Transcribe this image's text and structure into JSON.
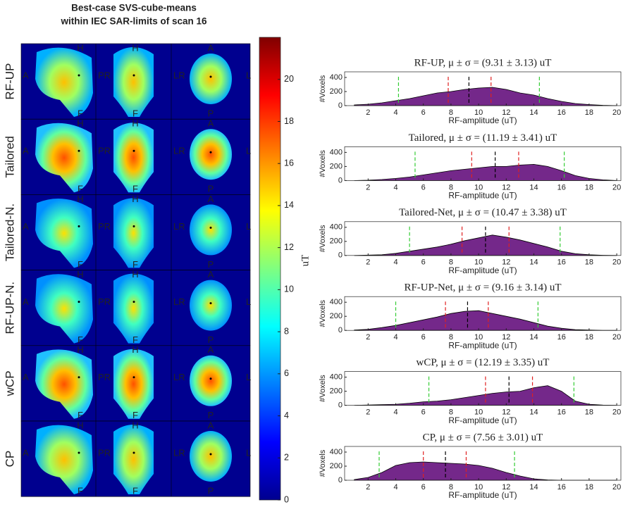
{
  "chart_data": [
    {
      "type": "image-grid",
      "title": [
        "Best-case SVS-cube-means",
        "within IEC SAR-limits of scan 16"
      ],
      "rows": [
        "RF-UP",
        "Tailored",
        "Tailored-N.",
        "RF-UP-N.",
        "wCP",
        "CP"
      ],
      "orientation_labels": {
        "sag_left": "A",
        "sag_top": "H",
        "sag_bottom": "F",
        "cor_left": "PR",
        "cor_top": "H",
        "cor_bottom": "F",
        "tra_left": "LR",
        "tra_top": "A",
        "tra_bottom": "P",
        "tra_right": "L"
      }
    },
    {
      "type": "colorbar",
      "ylim": [
        0,
        22
      ],
      "yticks": [
        0,
        2,
        4,
        6,
        8,
        10,
        12,
        14,
        16,
        18,
        20
      ],
      "label": "uT"
    },
    {
      "type": "area",
      "title": "RF-UP, μ ± σ = (9.31 ± 3.13) uT",
      "xlabel": "RF-amplitude (uT)",
      "ylabel": "#Voxels",
      "color": "#74288a",
      "x": [
        1,
        2,
        3,
        4,
        5,
        6,
        7,
        8,
        9,
        10,
        11,
        12,
        13,
        14,
        15,
        16,
        17,
        18,
        19,
        20
      ],
      "values": [
        10,
        20,
        40,
        70,
        100,
        140,
        180,
        200,
        230,
        250,
        260,
        230,
        180,
        150,
        100,
        60,
        30,
        15,
        5,
        0
      ],
      "xlim": [
        0.3,
        20.3
      ],
      "xticks": [
        2,
        4,
        6,
        8,
        10,
        12,
        14,
        16,
        18,
        20
      ],
      "ylim": [
        0,
        480
      ],
      "yticks": [
        0,
        200,
        400
      ],
      "markers": [
        {
          "value": 4.2,
          "color": "#33cc33"
        },
        {
          "value": 14.4,
          "color": "#33cc33"
        },
        {
          "value": 7.8,
          "color": "#e02020"
        },
        {
          "value": 10.9,
          "color": "#e02020"
        },
        {
          "value": 9.3,
          "color": "#000000"
        }
      ]
    },
    {
      "type": "area",
      "title": "Tailored, μ ± σ = (11.19 ± 3.41) uT",
      "xlabel": "RF-amplitude (uT)",
      "ylabel": "#Voxels",
      "color": "#74288a",
      "x": [
        1,
        2,
        3,
        4,
        5,
        6,
        7,
        8,
        9,
        10,
        11,
        12,
        13,
        14,
        15,
        16,
        17,
        18,
        19,
        20
      ],
      "values": [
        0,
        5,
        15,
        30,
        50,
        80,
        110,
        140,
        160,
        180,
        200,
        200,
        220,
        230,
        200,
        140,
        70,
        30,
        10,
        0
      ],
      "xlim": [
        0.3,
        20.3
      ],
      "xticks": [
        2,
        4,
        6,
        8,
        10,
        12,
        14,
        16,
        18,
        20
      ],
      "ylim": [
        0,
        480
      ],
      "yticks": [
        0,
        200,
        400
      ],
      "markers": [
        {
          "value": 5.4,
          "color": "#33cc33"
        },
        {
          "value": 16.2,
          "color": "#33cc33"
        },
        {
          "value": 9.5,
          "color": "#e02020"
        },
        {
          "value": 12.9,
          "color": "#e02020"
        },
        {
          "value": 11.2,
          "color": "#000000"
        }
      ]
    },
    {
      "type": "area",
      "title": "Tailored-Net, μ ± σ = (10.47 ± 3.38) uT",
      "xlabel": "RF-amplitude (uT)",
      "ylabel": "#Voxels",
      "color": "#74288a",
      "x": [
        1,
        2,
        3,
        4,
        5,
        6,
        7,
        8,
        9,
        10,
        11,
        12,
        13,
        14,
        15,
        16,
        17,
        18,
        19,
        20
      ],
      "values": [
        0,
        5,
        10,
        30,
        60,
        90,
        120,
        160,
        210,
        250,
        290,
        260,
        220,
        170,
        120,
        60,
        25,
        10,
        3,
        0
      ],
      "xlim": [
        0.3,
        20.3
      ],
      "xticks": [
        2,
        4,
        6,
        8,
        10,
        12,
        14,
        16,
        18,
        20
      ],
      "ylim": [
        0,
        480
      ],
      "yticks": [
        0,
        200,
        400
      ],
      "markers": [
        {
          "value": 5.0,
          "color": "#33cc33"
        },
        {
          "value": 15.9,
          "color": "#33cc33"
        },
        {
          "value": 8.8,
          "color": "#e02020"
        },
        {
          "value": 12.2,
          "color": "#e02020"
        },
        {
          "value": 10.5,
          "color": "#000000"
        }
      ]
    },
    {
      "type": "area",
      "title": "RF-UP-Net, μ ± σ = (9.16 ± 3.14) uT",
      "xlabel": "RF-amplitude (uT)",
      "ylabel": "#Voxels",
      "color": "#74288a",
      "x": [
        1,
        2,
        3,
        4,
        5,
        6,
        7,
        8,
        9,
        10,
        11,
        12,
        13,
        14,
        15,
        16,
        17,
        18,
        19,
        20
      ],
      "values": [
        5,
        15,
        40,
        70,
        110,
        150,
        190,
        240,
        270,
        280,
        240,
        200,
        160,
        110,
        60,
        30,
        10,
        5,
        0,
        0
      ],
      "xlim": [
        0.3,
        20.3
      ],
      "xticks": [
        2,
        4,
        6,
        8,
        10,
        12,
        14,
        16,
        18,
        20
      ],
      "ylim": [
        0,
        480
      ],
      "yticks": [
        0,
        200,
        400
      ],
      "markers": [
        {
          "value": 4.0,
          "color": "#33cc33"
        },
        {
          "value": 14.3,
          "color": "#33cc33"
        },
        {
          "value": 7.6,
          "color": "#e02020"
        },
        {
          "value": 10.7,
          "color": "#e02020"
        },
        {
          "value": 9.2,
          "color": "#000000"
        }
      ]
    },
    {
      "type": "area",
      "title": "wCP, μ ± σ = (12.19 ± 3.35) uT",
      "xlabel": "RF-amplitude (uT)",
      "ylabel": "#Voxels",
      "color": "#74288a",
      "x": [
        1,
        2,
        3,
        4,
        5,
        6,
        7,
        8,
        9,
        10,
        11,
        12,
        13,
        14,
        15,
        16,
        17,
        18,
        19,
        20
      ],
      "values": [
        0,
        5,
        10,
        15,
        30,
        50,
        60,
        80,
        110,
        140,
        170,
        190,
        200,
        250,
        280,
        200,
        60,
        15,
        3,
        0
      ],
      "xlim": [
        0.3,
        20.3
      ],
      "xticks": [
        2,
        4,
        6,
        8,
        10,
        12,
        14,
        16,
        18,
        20
      ],
      "ylim": [
        0,
        480
      ],
      "yticks": [
        0,
        200,
        400
      ],
      "markers": [
        {
          "value": 6.4,
          "color": "#33cc33"
        },
        {
          "value": 16.9,
          "color": "#33cc33"
        },
        {
          "value": 10.5,
          "color": "#e02020"
        },
        {
          "value": 13.9,
          "color": "#e02020"
        },
        {
          "value": 12.2,
          "color": "#000000"
        }
      ]
    },
    {
      "type": "area",
      "title": "CP, μ ± σ = (7.56 ± 3.01) uT",
      "xlabel": "RF-amplitude (uT)",
      "ylabel": "#Voxels",
      "color": "#74288a",
      "x": [
        1,
        2,
        3,
        4,
        5,
        6,
        7,
        8,
        9,
        10,
        11,
        12,
        13,
        14,
        15,
        16,
        17,
        18,
        19,
        20
      ],
      "values": [
        10,
        40,
        110,
        210,
        250,
        260,
        250,
        240,
        230,
        210,
        170,
        110,
        60,
        20,
        5,
        0,
        0,
        0,
        0,
        0
      ],
      "xlim": [
        0.3,
        20.3
      ],
      "xticks": [
        2,
        4,
        6,
        8,
        10,
        12,
        14,
        16,
        18,
        20
      ],
      "ylim": [
        0,
        480
      ],
      "yticks": [
        0,
        200,
        400
      ],
      "markers": [
        {
          "value": 2.8,
          "color": "#33cc33"
        },
        {
          "value": 12.6,
          "color": "#33cc33"
        },
        {
          "value": 6.0,
          "color": "#e02020"
        },
        {
          "value": 9.1,
          "color": "#e02020"
        },
        {
          "value": 7.6,
          "color": "#000000"
        }
      ]
    }
  ]
}
